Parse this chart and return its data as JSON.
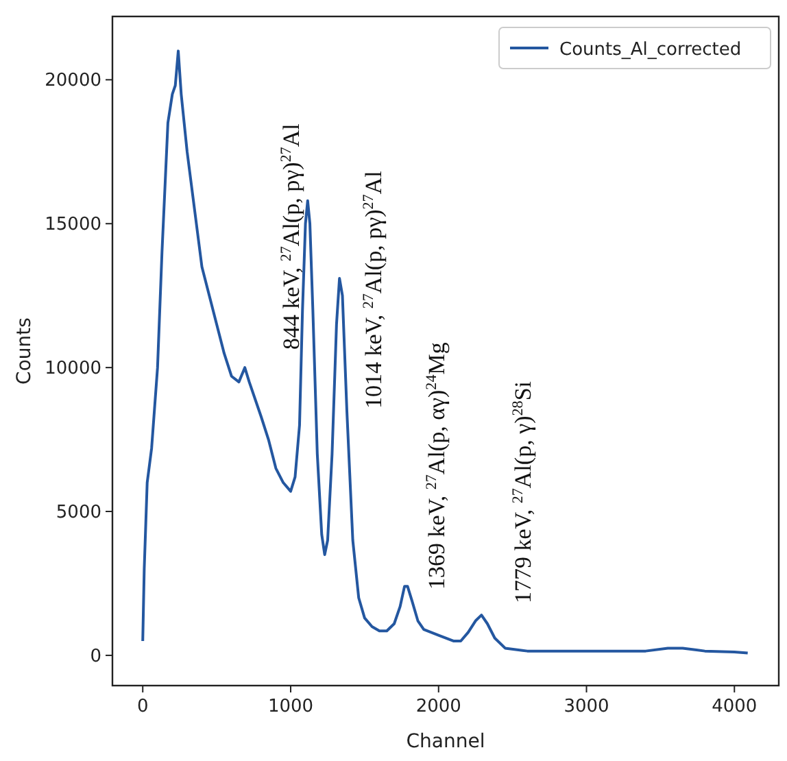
{
  "chart_data": {
    "type": "line",
    "xlabel": "Channel",
    "ylabel": "Counts",
    "xlim": [
      -205,
      4300
    ],
    "ylim": [
      -1050,
      22200
    ],
    "xticks": [
      0,
      1000,
      2000,
      3000,
      4000
    ],
    "yticks": [
      0,
      5000,
      10000,
      15000,
      20000
    ],
    "legend": "top right",
    "line_style": "solid",
    "series": [
      {
        "name": "Counts_Al_corrected",
        "color": "#2457a0",
        "x": [
          0,
          10,
          30,
          60,
          100,
          130,
          170,
          200,
          220,
          240,
          260,
          300,
          350,
          400,
          450,
          500,
          550,
          600,
          650,
          690,
          720,
          800,
          850,
          900,
          950,
          1000,
          1030,
          1060,
          1080,
          1100,
          1115,
          1130,
          1150,
          1180,
          1210,
          1230,
          1250,
          1280,
          1310,
          1330,
          1350,
          1380,
          1420,
          1460,
          1500,
          1550,
          1600,
          1650,
          1700,
          1740,
          1770,
          1790,
          1820,
          1860,
          1900,
          2000,
          2100,
          2150,
          2200,
          2250,
          2290,
          2330,
          2380,
          2450,
          2600,
          3000,
          3400,
          3550,
          3650,
          3800,
          4000,
          4090
        ],
        "values": [
          500,
          3000,
          6000,
          7200,
          10000,
          14000,
          18500,
          19500,
          19800,
          21000,
          19500,
          17500,
          15500,
          13500,
          12500,
          11500,
          10500,
          9700,
          9500,
          10000,
          9500,
          8300,
          7500,
          6500,
          6000,
          5700,
          6200,
          8000,
          12000,
          15000,
          15800,
          15000,
          12000,
          7000,
          4200,
          3500,
          4000,
          7000,
          11500,
          13100,
          12500,
          8500,
          4000,
          2000,
          1300,
          1000,
          850,
          850,
          1100,
          1700,
          2400,
          2400,
          1900,
          1200,
          900,
          700,
          500,
          500,
          800,
          1200,
          1400,
          1100,
          600,
          250,
          150,
          150,
          150,
          250,
          250,
          150,
          120,
          80
        ]
      }
    ],
    "annotations": [
      "844 keV, $^{27}$Al(p, pγ)$^{27}$Al",
      "1014 keV, $^{27}$Al(p, pγ)$^{27}$Al",
      "1369 keV, $^{27}$Al(p, αγ)$^{24}$Mg",
      "1779 keV, $^{27}$Al(p, γ)$^{28}$Si"
    ]
  }
}
